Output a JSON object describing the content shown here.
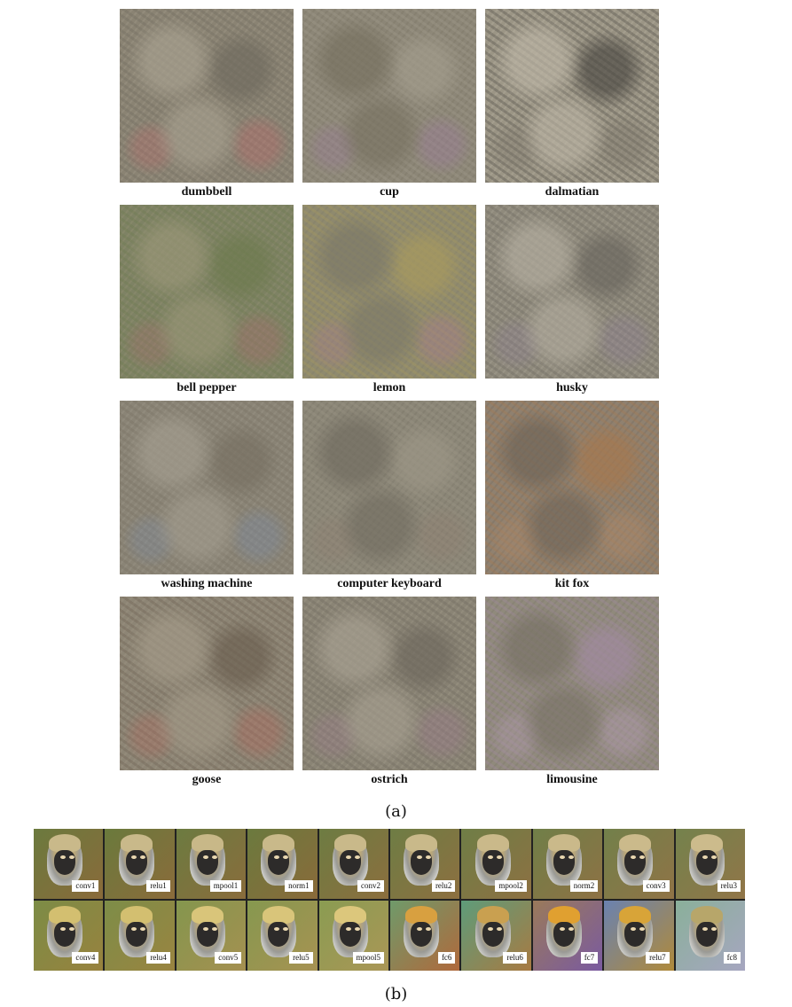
{
  "figure_a": {
    "rows": [
      [
        {
          "label": "dumbbell",
          "palette": [
            "#8a8373",
            "#6f6a5e",
            "#a8a190",
            "#b86a6a"
          ]
        },
        {
          "label": "cup",
          "palette": [
            "#8c8677",
            "#a29c8c",
            "#76705f",
            "#9a7a9a"
          ]
        },
        {
          "label": "dalmatian",
          "palette": [
            "#9b9585",
            "#4d4a44",
            "#bdb6a6",
            "#7a7468"
          ]
        }
      ],
      [
        {
          "label": "bell pepper",
          "palette": [
            "#7e8264",
            "#6d7a4e",
            "#9a9678",
            "#a36d6d"
          ]
        },
        {
          "label": "lemon",
          "palette": [
            "#8f8a6e",
            "#a89a5e",
            "#7b7868",
            "#a77a8e"
          ]
        },
        {
          "label": "husky",
          "palette": [
            "#8f8a7c",
            "#6a665e",
            "#b3ad9f",
            "#8c7e90"
          ]
        }
      ],
      [
        {
          "label": "washing machine",
          "palette": [
            "#8a8476",
            "#777062",
            "#a39d8f",
            "#7c8aa0"
          ]
        },
        {
          "label": "computer keyboard",
          "palette": [
            "#8b8677",
            "#9c9686",
            "#706b5f",
            "#8e7e70"
          ]
        },
        {
          "label": "kit fox",
          "palette": [
            "#8f8170",
            "#a6784e",
            "#6e6458",
            "#b08a6a"
          ]
        }
      ],
      [
        {
          "label": "goose",
          "palette": [
            "#8d8575",
            "#6b5f50",
            "#a39a88",
            "#b06a5e"
          ]
        },
        {
          "label": "ostrich",
          "palette": [
            "#8a8475",
            "#6e685d",
            "#a7a091",
            "#9a7a8a"
          ]
        },
        {
          "label": "limousine",
          "palette": [
            "#908a7c",
            "#a18aa0",
            "#777164",
            "#b39db0"
          ]
        }
      ]
    ],
    "sublabel": "(a)"
  },
  "figure_b": {
    "rows": [
      [
        {
          "label": "conv1",
          "bg": [
            "#6b7a3e",
            "#8a6a3a"
          ],
          "fg": "#c9b98a"
        },
        {
          "label": "relu1",
          "bg": [
            "#6a7a3c",
            "#8b6b3b"
          ],
          "fg": "#c9b98a"
        },
        {
          "label": "mpool1",
          "bg": [
            "#6c7b40",
            "#8a6c3c"
          ],
          "fg": "#c8b888"
        },
        {
          "label": "norm1",
          "bg": [
            "#6b7a3e",
            "#8a6a3a"
          ],
          "fg": "#c9b98a"
        },
        {
          "label": "conv2",
          "bg": [
            "#6d7c42",
            "#8c6e3e"
          ],
          "fg": "#c9b98a"
        },
        {
          "label": "relu2",
          "bg": [
            "#6e7d44",
            "#8d6f40"
          ],
          "fg": "#c9b98a"
        },
        {
          "label": "mpool2",
          "bg": [
            "#6f7e46",
            "#8d7042"
          ],
          "fg": "#cab98a"
        },
        {
          "label": "norm2",
          "bg": [
            "#707f48",
            "#8e7144"
          ],
          "fg": "#cab98a"
        },
        {
          "label": "conv3",
          "bg": [
            "#72804a",
            "#907346"
          ],
          "fg": "#cbba8b"
        },
        {
          "label": "relu3",
          "bg": [
            "#74824c",
            "#917548"
          ],
          "fg": "#ccbb8c"
        }
      ],
      [
        {
          "label": "conv4",
          "bg": [
            "#7c8c46",
            "#98823e"
          ],
          "fg": "#d3bf70"
        },
        {
          "label": "relu4",
          "bg": [
            "#7d8d48",
            "#9a8440"
          ],
          "fg": "#d3bf70"
        },
        {
          "label": "conv5",
          "bg": [
            "#84964e",
            "#a59050"
          ],
          "fg": "#d9c57a"
        },
        {
          "label": "relu5",
          "bg": [
            "#86984f",
            "#a79252"
          ],
          "fg": "#d9c57a"
        },
        {
          "label": "mpool5",
          "bg": [
            "#8a9c52",
            "#aa9656"
          ],
          "fg": "#dcc77c"
        },
        {
          "label": "fc6",
          "bg": [
            "#6f9a6a",
            "#b0693c"
          ],
          "fg": "#d8a040"
        },
        {
          "label": "relu6",
          "bg": [
            "#5e9c7a",
            "#a87a42"
          ],
          "fg": "#c9a050"
        },
        {
          "label": "fc7",
          "bg": [
            "#9a7a5a",
            "#7a5aa0"
          ],
          "fg": "#e0a030"
        },
        {
          "label": "relu7",
          "bg": [
            "#6a82b0",
            "#b08a3a"
          ],
          "fg": "#d8a438"
        },
        {
          "label": "fc8",
          "bg": [
            "#8ab09a",
            "#a6a6c0"
          ],
          "fg": "#b7a66a"
        }
      ]
    ],
    "sublabel": "(b)"
  }
}
